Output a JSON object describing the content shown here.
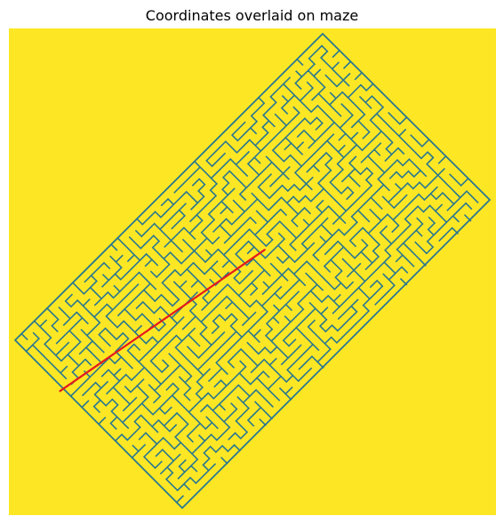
{
  "title": "Coordinates overlaid on maze",
  "colors": {
    "background": "#fde725",
    "maze_wall": "#2a788e",
    "maze_passage": "#fde725",
    "path_line": "#e41a1c"
  },
  "maze": {
    "orientation": "rotated about 45 degrees",
    "grid_cols": 32,
    "grid_rows": 20
  },
  "overlay_line": {
    "description": "Red coordinate line",
    "points": [
      {
        "x": 0.105,
        "y": 0.745
      },
      {
        "x": 0.525,
        "y": 0.455
      }
    ]
  }
}
